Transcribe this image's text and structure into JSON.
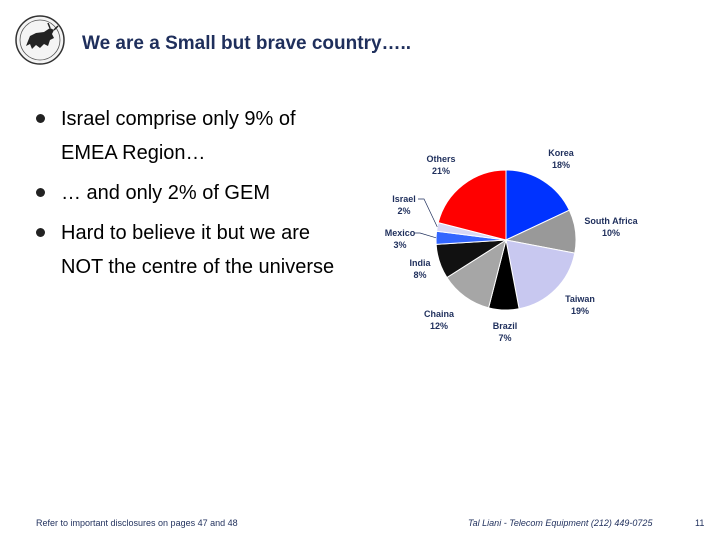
{
  "header": {
    "title": "We are a Small but brave country….."
  },
  "bullets": [
    "Israel comprise only 9% of EMEA Region…",
    "… and only 2% of GEM",
    "Hard to believe it but we are NOT the centre of the universe"
  ],
  "footer": {
    "disclosure": "Refer to important disclosures on pages 47 and 48",
    "analyst": "Tal Liani - Telecom Equipment (212) 449-0725",
    "page_number": "11"
  },
  "chart_data": {
    "type": "pie",
    "slices": [
      {
        "label": "Korea",
        "value": 18,
        "display": "18%",
        "color": "#0033ff"
      },
      {
        "label": "South Africa",
        "value": 10,
        "display": "10%",
        "color": "#999999"
      },
      {
        "label": "Taiwan",
        "value": 19,
        "display": "19%",
        "color": "#c8c8f0"
      },
      {
        "label": "Brazil",
        "value": 7,
        "display": "7%",
        "color": "#000000"
      },
      {
        "label": "Chaina",
        "value": 12,
        "display": "12%",
        "color": "#a6a6a6"
      },
      {
        "label": "India",
        "value": 8,
        "display": "8%",
        "color": "#111111"
      },
      {
        "label": "Mexico",
        "value": 3,
        "display": "3%",
        "color": "#3366ff"
      },
      {
        "label": "Israel",
        "value": 2,
        "display": "2%",
        "color": "#d8d8f5"
      },
      {
        "label": "Others",
        "value": 21,
        "display": "21%",
        "color": "#ff0000"
      }
    ]
  }
}
